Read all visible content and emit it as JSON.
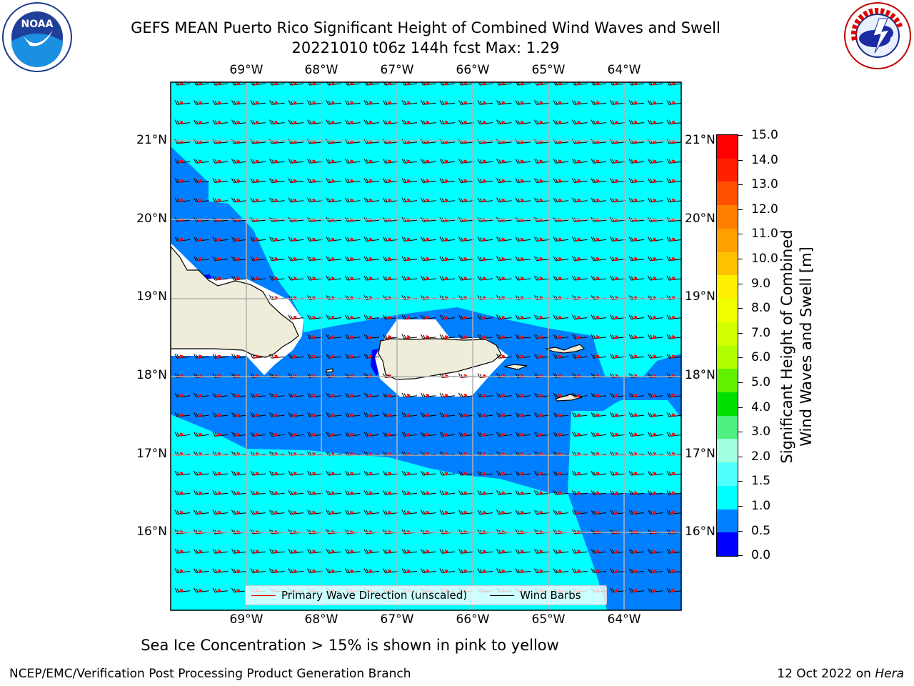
{
  "title": {
    "line1": "GEFS MEAN Puerto Rico Significant Height of Combined Wind Waves and Swell",
    "line2": "20221010 t06z 144h fcst   Max: 1.29"
  },
  "map": {
    "lon_ticks": [
      "69°W",
      "68°W",
      "67°W",
      "66°W",
      "65°W",
      "64°W"
    ],
    "lat_ticks": [
      "21°N",
      "20°N",
      "19°N",
      "18°N",
      "17°N",
      "16°N"
    ],
    "colors": {
      "sea_high": "#00ffff",
      "sea_mid": "#0080ff",
      "sea_low": "#0000ff",
      "land": "#efedda",
      "no_data": "#ffffff",
      "wave_arrow": "#ff0000",
      "wind_barb": "#000000",
      "grid": "#b0b0b0"
    }
  },
  "colorbar": {
    "title_line1": "Significant Height of Combined",
    "title_line2": "Wind Waves and Swell [m]",
    "ticks": [
      "15.0",
      "14.0",
      "13.0",
      "12.0",
      "11.0",
      "10.0",
      "9.0",
      "8.0",
      "7.0",
      "6.0",
      "5.0",
      "4.0",
      "3.0",
      "2.0",
      "1.5",
      "1.0",
      "0.5",
      "0.0"
    ],
    "segment_colors": [
      "#ff0000",
      "#ff2000",
      "#ff5000",
      "#ff8000",
      "#ffa000",
      "#ffc000",
      "#ffef00",
      "#f0ff00",
      "#d0ff00",
      "#b0ff00",
      "#60f000",
      "#00e000",
      "#50f080",
      "#a0ffe0",
      "#50ffff",
      "#00ffff",
      "#0080ff",
      "#0000ff"
    ]
  },
  "legend": {
    "wave_label": "Primary Wave Direction (unscaled)",
    "barb_label": "Wind Barbs"
  },
  "notes": {
    "sea_ice": "Sea Ice Concentration > 15% is shown in pink to yellow"
  },
  "footer": {
    "left": "NCEP/EMC/Verification Post Processing Product Generation Branch",
    "right_prefix": "12 Oct 2022 on ",
    "right_host": "Hera"
  }
}
